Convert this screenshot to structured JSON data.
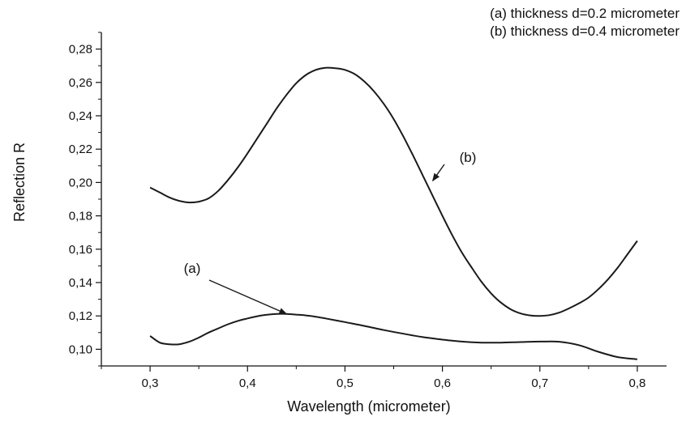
{
  "chart_data": {
    "type": "line",
    "xlabel": "Wavelength (micrometer)",
    "ylabel": "Reflection R",
    "xlim": [
      0.25,
      0.83
    ],
    "ylim": [
      0.09,
      0.29
    ],
    "x_ticks": [
      0.3,
      0.4,
      0.5,
      0.6,
      0.7,
      0.8
    ],
    "x_tick_labels": [
      "0,3",
      "0,4",
      "0,5",
      "0,6",
      "0,7",
      "0,8"
    ],
    "y_ticks": [
      0.1,
      0.12,
      0.14,
      0.16,
      0.18,
      0.2,
      0.22,
      0.24,
      0.26,
      0.28
    ],
    "y_tick_labels": [
      "0,10",
      "0,12",
      "0,14",
      "0,16",
      "0,18",
      "0,20",
      "0,22",
      "0,24",
      "0,26",
      "0,28"
    ],
    "grid": false,
    "legend_lines": [
      "(a) thickness d=0.2 micrometer",
      "(b) thickness d=0.4 micrometer"
    ],
    "legend_position": "top-right",
    "series": [
      {
        "name": "(a)",
        "color": "#1a1a1a",
        "x": [
          0.3,
          0.31,
          0.32,
          0.33,
          0.34,
          0.35,
          0.36,
          0.37,
          0.38,
          0.39,
          0.4,
          0.41,
          0.42,
          0.43,
          0.44,
          0.45,
          0.46,
          0.47,
          0.48,
          0.5,
          0.52,
          0.54,
          0.56,
          0.58,
          0.6,
          0.62,
          0.64,
          0.66,
          0.68,
          0.7,
          0.72,
          0.74,
          0.76,
          0.78,
          0.8
        ],
        "y": [
          0.108,
          0.104,
          0.103,
          0.103,
          0.1045,
          0.107,
          0.11,
          0.1125,
          0.115,
          0.117,
          0.1185,
          0.1198,
          0.1207,
          0.1212,
          0.1212,
          0.1208,
          0.1203,
          0.1195,
          0.1185,
          0.1163,
          0.114,
          0.1115,
          0.1093,
          0.1073,
          0.1058,
          0.1046,
          0.104,
          0.104,
          0.1043,
          0.1046,
          0.1045,
          0.1025,
          0.0985,
          0.0953,
          0.094
        ]
      },
      {
        "name": "(b)",
        "color": "#1a1a1a",
        "x": [
          0.3,
          0.31,
          0.32,
          0.33,
          0.34,
          0.35,
          0.36,
          0.37,
          0.38,
          0.39,
          0.4,
          0.41,
          0.42,
          0.43,
          0.44,
          0.45,
          0.46,
          0.47,
          0.48,
          0.49,
          0.5,
          0.51,
          0.52,
          0.53,
          0.54,
          0.55,
          0.56,
          0.57,
          0.58,
          0.59,
          0.6,
          0.61,
          0.62,
          0.63,
          0.64,
          0.65,
          0.66,
          0.67,
          0.68,
          0.69,
          0.7,
          0.71,
          0.72,
          0.73,
          0.74,
          0.75,
          0.76,
          0.77,
          0.78,
          0.79,
          0.8
        ],
        "y": [
          0.197,
          0.194,
          0.191,
          0.189,
          0.188,
          0.1885,
          0.1905,
          0.195,
          0.2015,
          0.209,
          0.2175,
          0.2265,
          0.2355,
          0.2445,
          0.2525,
          0.2595,
          0.2645,
          0.2675,
          0.2688,
          0.2685,
          0.2675,
          0.265,
          0.2605,
          0.2545,
          0.247,
          0.238,
          0.2275,
          0.216,
          0.204,
          0.192,
          0.18,
          0.1685,
          0.158,
          0.149,
          0.1405,
          0.1335,
          0.128,
          0.124,
          0.1215,
          0.1203,
          0.12,
          0.1205,
          0.122,
          0.1245,
          0.1275,
          0.131,
          0.136,
          0.142,
          0.149,
          0.157,
          0.165
        ]
      }
    ],
    "annotations": [
      {
        "text": "(a)",
        "points_to": [
          0.44,
          0.1212
        ]
      },
      {
        "text": "(b)",
        "points_to": [
          0.59,
          0.201
        ]
      }
    ]
  }
}
